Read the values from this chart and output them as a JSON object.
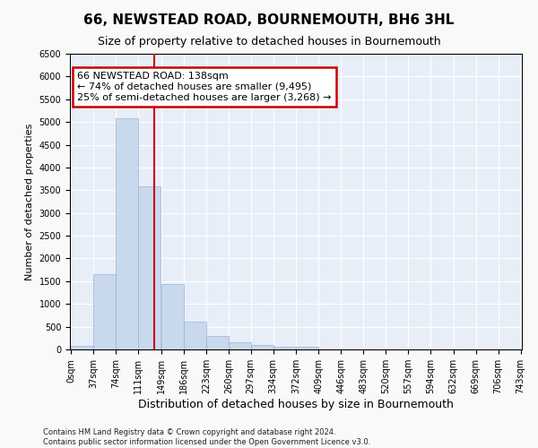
{
  "title": "66, NEWSTEAD ROAD, BOURNEMOUTH, BH6 3HL",
  "subtitle": "Size of property relative to detached houses in Bournemouth",
  "xlabel": "Distribution of detached houses by size in Bournemouth",
  "ylabel": "Number of detached properties",
  "bar_color": "#c8d9ee",
  "bar_edge_color": "#9ab5d4",
  "background_color": "#e8eef8",
  "grid_color": "#ffffff",
  "vline_x": 138,
  "vline_color": "#cc0000",
  "annotation_text": "66 NEWSTEAD ROAD: 138sqm\n← 74% of detached houses are smaller (9,495)\n25% of semi-detached houses are larger (3,268) →",
  "annotation_box_color": "#ffffff",
  "annotation_box_edge": "#cc0000",
  "bins_left": [
    0,
    37,
    74,
    111,
    149,
    186,
    223,
    260,
    297,
    334,
    372,
    409,
    446,
    483,
    520,
    557,
    594,
    632,
    669,
    706
  ],
  "bin_width": 37,
  "bin_counts": [
    80,
    1650,
    5080,
    3580,
    1430,
    610,
    300,
    155,
    100,
    50,
    50,
    0,
    0,
    0,
    0,
    0,
    0,
    0,
    0,
    0
  ],
  "ylim": [
    0,
    6500
  ],
  "tick_labels": [
    "0sqm",
    "37sqm",
    "74sqm",
    "111sqm",
    "149sqm",
    "186sqm",
    "223sqm",
    "260sqm",
    "297sqm",
    "334sqm",
    "372sqm",
    "409sqm",
    "446sqm",
    "483sqm",
    "520sqm",
    "557sqm",
    "594sqm",
    "632sqm",
    "669sqm",
    "706sqm",
    "743sqm"
  ],
  "footer_line1": "Contains HM Land Registry data © Crown copyright and database right 2024.",
  "footer_line2": "Contains public sector information licensed under the Open Government Licence v3.0.",
  "fig_bg": "#f9f9f9"
}
